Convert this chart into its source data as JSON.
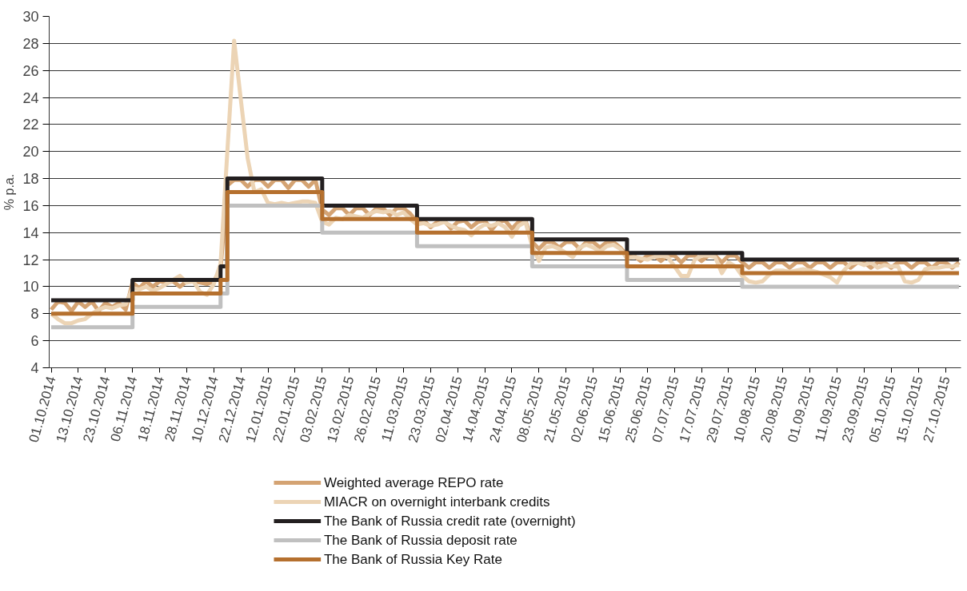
{
  "chart_data": {
    "type": "line",
    "ylabel": "% p.a.",
    "ylim": [
      4,
      30
    ],
    "yticks": [
      4,
      6,
      8,
      10,
      12,
      14,
      16,
      18,
      20,
      22,
      24,
      26,
      28,
      30
    ],
    "grid": "y",
    "legend": "bottom",
    "categories": [
      "01.10.2014",
      null,
      null,
      null,
      "13.10.2014",
      null,
      null,
      null,
      "23.10.2014",
      null,
      null,
      null,
      "06.11.2014",
      null,
      null,
      null,
      "18.11.2014",
      null,
      null,
      null,
      "28.11.2014",
      null,
      null,
      null,
      "10.12.2014",
      null,
      null,
      null,
      "22.12.2014",
      null,
      null,
      null,
      "12.01.2015",
      null,
      null,
      null,
      "22.01.2015",
      null,
      null,
      null,
      "03.02.2015",
      null,
      null,
      null,
      "13.02.2015",
      null,
      null,
      null,
      "26.02.2015",
      null,
      null,
      null,
      "11.03.2015",
      null,
      null,
      null,
      "23.03.2015",
      null,
      null,
      null,
      "02.04.2015",
      null,
      null,
      null,
      "14.04.2015",
      null,
      null,
      null,
      "24.04.2015",
      null,
      null,
      null,
      "08.05.2015",
      null,
      null,
      null,
      "21.05.2015",
      null,
      null,
      null,
      "02.06.2015",
      null,
      null,
      null,
      "15.06.2015",
      null,
      null,
      null,
      "25.06.2015",
      null,
      null,
      null,
      "07.07.2015",
      null,
      null,
      null,
      "17.07.2015",
      null,
      null,
      null,
      "29.07.2015",
      null,
      null,
      null,
      "10.08.2015",
      null,
      null,
      null,
      "20.08.2015",
      null,
      null,
      null,
      "01.09.2015",
      null,
      null,
      null,
      "11.09.2015",
      null,
      null,
      null,
      "23.09.2015",
      null,
      null,
      null,
      "05.10.2015",
      null,
      null,
      null,
      "15.10.2015",
      null,
      null,
      null,
      "27.10.2015",
      null,
      null
    ],
    "series": [
      {
        "name": "Weighted average REPO rate",
        "type": "line",
        "color": "#d4a373",
        "values": [
          8.3,
          8.9,
          8.8,
          8.2,
          8.9,
          8.5,
          8.9,
          8.2,
          8.8,
          8.5,
          8.8,
          8.3,
          10.3,
          9.9,
          10.4,
          10.0,
          10.4,
          10.3,
          10.4,
          10.0,
          10.4,
          10.4,
          10.3,
          10.2,
          10.4,
          11.3,
          17.5,
          17.9,
          17.9,
          17.4,
          17.9,
          17.9,
          17.4,
          17.9,
          17.9,
          17.3,
          17.9,
          17.9,
          17.4,
          17.9,
          15.7,
          15.3,
          15.8,
          15.8,
          15.3,
          15.8,
          15.8,
          15.3,
          15.8,
          15.8,
          15.3,
          15.8,
          15.8,
          15.4,
          14.8,
          14.9,
          14.4,
          14.8,
          14.9,
          14.3,
          14.8,
          14.9,
          14.4,
          14.8,
          14.9,
          14.2,
          14.8,
          14.9,
          14.3,
          14.8,
          14.9,
          13.3,
          12.8,
          13.3,
          13.3,
          12.9,
          13.3,
          13.3,
          12.8,
          13.3,
          13.3,
          12.9,
          13.3,
          13.3,
          12.9,
          12.3,
          12.3,
          11.9,
          12.3,
          12.3,
          11.9,
          12.3,
          12.3,
          11.8,
          12.3,
          12.3,
          11.9,
          12.3,
          12.3,
          11.8,
          12.3,
          12.3,
          11.8,
          11.4,
          11.8,
          11.8,
          11.4,
          11.8,
          11.8,
          11.4,
          11.8,
          11.8,
          11.4,
          11.8,
          11.8,
          11.4,
          11.8,
          11.8,
          11.4,
          11.8,
          11.8,
          11.4,
          11.8,
          11.8,
          11.4,
          11.8,
          11.8,
          11.4,
          11.8,
          11.8,
          11.4,
          11.8,
          11.8,
          11.4,
          11.8
        ]
      },
      {
        "name": "MIACR on overnight interbank credits",
        "type": "line",
        "color": "#ecd4b5",
        "values": [
          8.0,
          7.6,
          7.3,
          7.3,
          7.5,
          7.6,
          8.0,
          8.3,
          8.5,
          8.4,
          8.6,
          8.7,
          9.9,
          9.8,
          10.0,
          9.7,
          9.9,
          10.2,
          10.5,
          10.8,
          10.3,
          10.4,
          9.6,
          9.4,
          10.2,
          11.7,
          20.0,
          28.2,
          23.8,
          19.5,
          17.0,
          17.2,
          16.2,
          16.1,
          16.2,
          16.1,
          16.2,
          16.3,
          16.3,
          16.2,
          14.8,
          14.6,
          15.1,
          15.0,
          15.3,
          15.2,
          15.1,
          15.4,
          15.6,
          15.5,
          15.6,
          15.3,
          15.5,
          15.0,
          14.6,
          14.7,
          14.5,
          14.6,
          14.8,
          14.5,
          14.3,
          14.2,
          13.8,
          14.3,
          14.6,
          14.5,
          14.7,
          14.4,
          13.7,
          14.5,
          14.8,
          13.0,
          11.9,
          12.9,
          13.0,
          12.8,
          12.5,
          12.2,
          12.9,
          13.1,
          12.9,
          12.6,
          13.0,
          13.1,
          12.8,
          12.1,
          12.2,
          12.1,
          12.0,
          12.2,
          12.3,
          12.2,
          11.5,
          10.8,
          10.8,
          12.0,
          12.3,
          12.3,
          12.2,
          11.0,
          11.8,
          11.5,
          10.8,
          10.4,
          10.3,
          10.4,
          10.9,
          11.2,
          11.2,
          11.1,
          11.2,
          11.3,
          11.2,
          11.1,
          10.9,
          10.7,
          10.3,
          11.2,
          11.7,
          11.8,
          11.6,
          11.8,
          11.4,
          11.6,
          11.5,
          11.5,
          10.4,
          10.3,
          10.5,
          11.3,
          11.4,
          11.4,
          11.5,
          11.5,
          11.6
        ]
      },
      {
        "name": "The Bank of Russia credit rate (overnight)",
        "type": "step",
        "color": "#231f20",
        "values": [
          9,
          9,
          9,
          9,
          9,
          9,
          9,
          9,
          9,
          9,
          9,
          9,
          10.5,
          10.5,
          10.5,
          10.5,
          10.5,
          10.5,
          10.5,
          10.5,
          10.5,
          10.5,
          10.5,
          10.5,
          10.5,
          11.5,
          18,
          18,
          18,
          18,
          18,
          18,
          18,
          18,
          18,
          18,
          18,
          18,
          18,
          18,
          16,
          16,
          16,
          16,
          16,
          16,
          16,
          16,
          16,
          16,
          16,
          16,
          16,
          16,
          15,
          15,
          15,
          15,
          15,
          15,
          15,
          15,
          15,
          15,
          15,
          15,
          15,
          15,
          15,
          15,
          15,
          13.5,
          13.5,
          13.5,
          13.5,
          13.5,
          13.5,
          13.5,
          13.5,
          13.5,
          13.5,
          13.5,
          13.5,
          13.5,
          13.5,
          12.5,
          12.5,
          12.5,
          12.5,
          12.5,
          12.5,
          12.5,
          12.5,
          12.5,
          12.5,
          12.5,
          12.5,
          12.5,
          12.5,
          12.5,
          12.5,
          12.5,
          12,
          12,
          12,
          12,
          12,
          12,
          12,
          12,
          12,
          12,
          12,
          12,
          12,
          12,
          12,
          12,
          12,
          12,
          12,
          12,
          12,
          12,
          12,
          12,
          12,
          12,
          12,
          12,
          12,
          12,
          12,
          12,
          12
        ]
      },
      {
        "name": "The Bank of Russia deposit rate",
        "type": "step",
        "color": "#c0c0c0",
        "values": [
          7,
          7,
          7,
          7,
          7,
          7,
          7,
          7,
          7,
          7,
          7,
          7,
          8.5,
          8.5,
          8.5,
          8.5,
          8.5,
          8.5,
          8.5,
          8.5,
          8.5,
          8.5,
          8.5,
          8.5,
          8.5,
          9.5,
          16,
          16,
          16,
          16,
          16,
          16,
          16,
          16,
          16,
          16,
          16,
          16,
          16,
          16,
          14,
          14,
          14,
          14,
          14,
          14,
          14,
          14,
          14,
          14,
          14,
          14,
          14,
          14,
          13,
          13,
          13,
          13,
          13,
          13,
          13,
          13,
          13,
          13,
          13,
          13,
          13,
          13,
          13,
          13,
          13,
          11.5,
          11.5,
          11.5,
          11.5,
          11.5,
          11.5,
          11.5,
          11.5,
          11.5,
          11.5,
          11.5,
          11.5,
          11.5,
          11.5,
          10.5,
          10.5,
          10.5,
          10.5,
          10.5,
          10.5,
          10.5,
          10.5,
          10.5,
          10.5,
          10.5,
          10.5,
          10.5,
          10.5,
          10.5,
          10.5,
          10.5,
          10,
          10,
          10,
          10,
          10,
          10,
          10,
          10,
          10,
          10,
          10,
          10,
          10,
          10,
          10,
          10,
          10,
          10,
          10,
          10,
          10,
          10,
          10,
          10,
          10,
          10,
          10,
          10,
          10,
          10,
          10,
          10,
          10
        ]
      },
      {
        "name": "The Bank of Russia Key Rate",
        "type": "step",
        "color": "#b5702e",
        "values": [
          8,
          8,
          8,
          8,
          8,
          8,
          8,
          8,
          8,
          8,
          8,
          8,
          9.5,
          9.5,
          9.5,
          9.5,
          9.5,
          9.5,
          9.5,
          9.5,
          9.5,
          9.5,
          9.5,
          9.5,
          9.5,
          10.5,
          17,
          17,
          17,
          17,
          17,
          17,
          17,
          17,
          17,
          17,
          17,
          17,
          17,
          17,
          15,
          15,
          15,
          15,
          15,
          15,
          15,
          15,
          15,
          15,
          15,
          15,
          15,
          15,
          14,
          14,
          14,
          14,
          14,
          14,
          14,
          14,
          14,
          14,
          14,
          14,
          14,
          14,
          14,
          14,
          14,
          12.5,
          12.5,
          12.5,
          12.5,
          12.5,
          12.5,
          12.5,
          12.5,
          12.5,
          12.5,
          12.5,
          12.5,
          12.5,
          12.5,
          11.5,
          11.5,
          11.5,
          11.5,
          11.5,
          11.5,
          11.5,
          11.5,
          11.5,
          11.5,
          11.5,
          11.5,
          11.5,
          11.5,
          11.5,
          11.5,
          11.5,
          11,
          11,
          11,
          11,
          11,
          11,
          11,
          11,
          11,
          11,
          11,
          11,
          11,
          11,
          11,
          11,
          11,
          11,
          11,
          11,
          11,
          11,
          11,
          11,
          11,
          11,
          11,
          11,
          11,
          11,
          11,
          11,
          11
        ]
      }
    ]
  }
}
